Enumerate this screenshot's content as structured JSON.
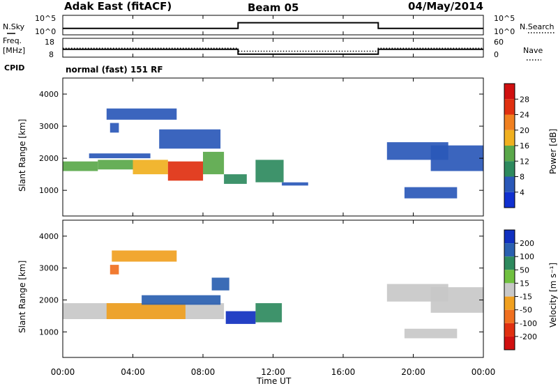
{
  "header": {
    "title": "Adak East (fitACF)",
    "beam": "Beam 05",
    "date": "04/May/2014"
  },
  "nsky_panel": {
    "left_label": "N.Sky",
    "right_label": "N.Search",
    "left_ticks": [
      "10^5",
      "10^0"
    ],
    "right_ticks": [
      "10^5",
      "10^0"
    ]
  },
  "freq_panel": {
    "left_label_line1": "Freq.",
    "left_label_line2": "[MHz]",
    "right_label": "Nave",
    "left_ticks": [
      "18",
      "8"
    ],
    "right_ticks": [
      "60",
      "0"
    ]
  },
  "cpid": {
    "label": "CPID",
    "mode": "normal (fast) 151 RF"
  },
  "x_axis": {
    "label": "Time UT",
    "ticks": [
      "00:00",
      "04:00",
      "08:00",
      "12:00",
      "16:00",
      "20:00",
      "00:00"
    ]
  },
  "power_colorbar": {
    "label": "Power [dB]",
    "ticks": [
      "4",
      "8",
      "12",
      "16",
      "20",
      "24",
      "28"
    ],
    "colors": [
      "#1030d0",
      "#2a58b8",
      "#2e8a5e",
      "#5aa84a",
      "#f0b020",
      "#f08020",
      "#e03010",
      "#d01010"
    ]
  },
  "velocity_colorbar": {
    "label": "Velocity [m s⁻¹]",
    "ticks": [
      "200",
      "100",
      "50",
      "15",
      "-15",
      "-50",
      "-100",
      "-200"
    ],
    "colors": [
      "#1030c0",
      "#2a60b0",
      "#2e8a5e",
      "#70c040",
      "#c8c8c8",
      "#f0a020",
      "#f07020",
      "#e03010",
      "#d01010"
    ]
  },
  "chart_data": [
    {
      "type": "line",
      "title": "Adak East (fitACF)",
      "panel": "N.Sky / N.Search",
      "x": [
        "00:00",
        "10:00",
        "10:00",
        "18:00",
        "18:00",
        "24:00"
      ],
      "series": [
        {
          "name": "N.Sky",
          "values": [
            1.5,
            1.5,
            3.2,
            3.2,
            1.5,
            1.5
          ]
        }
      ]
    },
    {
      "type": "line",
      "panel": "Freq. / Nave",
      "x": [
        "00:00",
        "10:00",
        "10:00",
        "18:00",
        "18:00",
        "24:00"
      ],
      "series": [
        {
          "name": "Freq.",
          "values": [
            12.0,
            12.0,
            9.0,
            9.0,
            12.0,
            12.0
          ]
        },
        {
          "name": "Nave",
          "values": [
            28,
            28,
            17,
            17,
            28,
            28
          ]
        }
      ]
    },
    {
      "type": "heatmap",
      "title": "Beam 05",
      "xlabel": "Time UT",
      "ylabel": "Slant Range [km]",
      "xlim": [
        "00:00",
        "24:00"
      ],
      "ylim": [
        200,
        4500
      ],
      "y_ticks": [
        1000,
        2000,
        3000,
        4000
      ],
      "colorbar": "Power [dB]",
      "bands": [
        {
          "t": [
            0.0,
            2.0
          ],
          "range": [
            1600,
            1900
          ],
          "value": 14
        },
        {
          "t": [
            2.0,
            4.0
          ],
          "range": [
            1650,
            1950
          ],
          "value": 14
        },
        {
          "t": [
            4.0,
            6.0
          ],
          "range": [
            1500,
            1950
          ],
          "value": 17
        },
        {
          "t": [
            6.0,
            8.0
          ],
          "range": [
            1300,
            1900
          ],
          "value": 25
        },
        {
          "t": [
            8.0,
            9.2
          ],
          "range": [
            1500,
            2200
          ],
          "value": 14
        },
        {
          "t": [
            9.2,
            10.5
          ],
          "range": [
            1200,
            1500
          ],
          "value": 9
        },
        {
          "t": [
            11.0,
            12.6
          ],
          "range": [
            1250,
            1950
          ],
          "value": 11
        },
        {
          "t": [
            1.5,
            5.0
          ],
          "range": [
            2000,
            2150
          ],
          "value": 6
        },
        {
          "t": [
            2.5,
            6.5
          ],
          "range": [
            3200,
            3550
          ],
          "value": 6
        },
        {
          "t": [
            2.7,
            3.2
          ],
          "range": [
            2800,
            3100
          ],
          "value": 6
        },
        {
          "t": [
            5.5,
            9.0
          ],
          "range": [
            2300,
            2900
          ],
          "value": 6
        },
        {
          "t": [
            12.5,
            14.0
          ],
          "range": [
            1150,
            1250
          ],
          "value": 6
        },
        {
          "t": [
            18.5,
            22.0
          ],
          "range": [
            1950,
            2500
          ],
          "value": 6
        },
        {
          "t": [
            19.5,
            22.5
          ],
          "range": [
            750,
            1100
          ],
          "value": 7
        },
        {
          "t": [
            21.0,
            24.0
          ],
          "range": [
            1600,
            2400
          ],
          "value": 6
        }
      ]
    },
    {
      "type": "heatmap",
      "xlabel": "Time UT",
      "ylabel": "Slant Range [km]",
      "xlim": [
        "00:00",
        "24:00"
      ],
      "ylim": [
        200,
        4500
      ],
      "y_ticks": [
        1000,
        2000,
        3000,
        4000
      ],
      "colorbar": "Velocity [m s⁻¹]",
      "bands": [
        {
          "t": [
            0.0,
            9.2
          ],
          "range": [
            1400,
            1900
          ],
          "value": 0
        },
        {
          "t": [
            2.5,
            7.0
          ],
          "range": [
            1400,
            1900
          ],
          "value": -40
        },
        {
          "t": [
            4.5,
            9.0
          ],
          "range": [
            1850,
            2150
          ],
          "value": 150
        },
        {
          "t": [
            2.8,
            6.5
          ],
          "range": [
            3200,
            3550
          ],
          "value": -40
        },
        {
          "t": [
            2.7,
            3.2
          ],
          "range": [
            2800,
            3100
          ],
          "value": -60
        },
        {
          "t": [
            8.5,
            9.5
          ],
          "range": [
            2300,
            2700
          ],
          "value": 180
        },
        {
          "t": [
            9.3,
            11.0
          ],
          "range": [
            1250,
            1650
          ],
          "value": 220
        },
        {
          "t": [
            11.0,
            12.5
          ],
          "range": [
            1300,
            1900
          ],
          "value": 60
        },
        {
          "t": [
            18.5,
            22.0
          ],
          "range": [
            1950,
            2500
          ],
          "value": 0
        },
        {
          "t": [
            19.5,
            22.5
          ],
          "range": [
            800,
            1100
          ],
          "value": 0
        },
        {
          "t": [
            21.0,
            24.0
          ],
          "range": [
            1600,
            2400
          ],
          "value": 0
        }
      ]
    }
  ]
}
